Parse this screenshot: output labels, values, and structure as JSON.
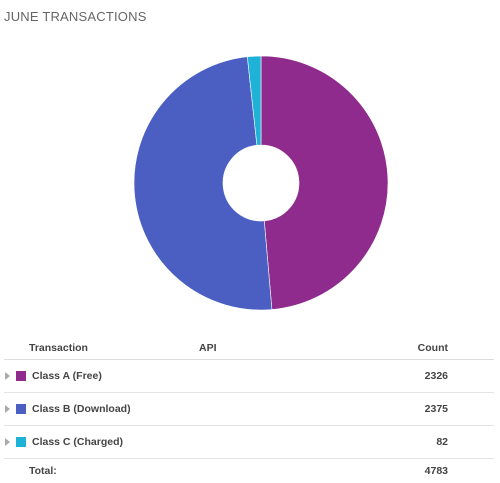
{
  "title": "JUNE TRANSACTIONS",
  "chart_data": {
    "type": "pie",
    "donut": true,
    "categories": [
      "Class A (Free)",
      "Class B (Download)",
      "Class C (Charged)"
    ],
    "values": [
      2326,
      2375,
      82
    ],
    "colors": [
      "#8e2b8c",
      "#4a5fc1",
      "#1eb2d9"
    ],
    "legend": "table-below"
  },
  "table": {
    "headers": {
      "transaction": "Transaction",
      "api": "API",
      "count": "Count"
    },
    "rows": [
      {
        "label": "Class A (Free)",
        "api": "",
        "count": "2326",
        "color": "#8e2b8c"
      },
      {
        "label": "Class B (Download)",
        "api": "",
        "count": "2375",
        "color": "#4a5fc1"
      },
      {
        "label": "Class C (Charged)",
        "api": "",
        "count": "82",
        "color": "#1eb2d9"
      }
    ],
    "total_label": "Total:",
    "total_count": "4783"
  }
}
